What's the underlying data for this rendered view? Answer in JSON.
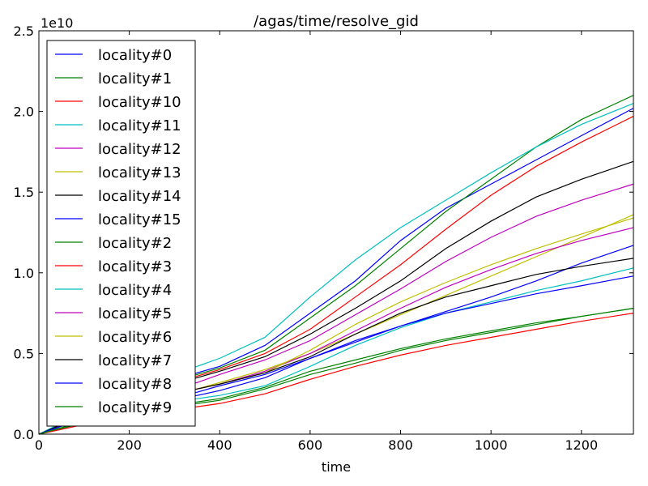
{
  "chart_data": {
    "type": "line",
    "title": "/agas/time/resolve_gid",
    "xlabel": "time",
    "ylabel": "",
    "y_offset_label": "1e10",
    "xlim": [
      0,
      1315
    ],
    "ylim": [
      0,
      2.5
    ],
    "y_multiplier": 10000000000,
    "xticks": [
      0,
      200,
      400,
      600,
      800,
      1000,
      1200
    ],
    "xtick_labels": [
      "0",
      "200",
      "400",
      "600",
      "800",
      "1000",
      "1200"
    ],
    "yticks": [
      0,
      0.5,
      1.0,
      1.5,
      2.0,
      2.5
    ],
    "ytick_labels": [
      "0.0",
      "0.5",
      "1.0",
      "1.5",
      "2.0",
      "2.5"
    ],
    "grid": false,
    "legend_position": "upper-left",
    "series": [
      {
        "name": "locality#0",
        "color": "#0000ff",
        "x": [
          0,
          100,
          200,
          300,
          350,
          400,
          500,
          600,
          700,
          800,
          900,
          1000,
          1100,
          1200,
          1315
        ],
        "y": [
          0,
          0.12,
          0.22,
          0.32,
          0.38,
          0.42,
          0.55,
          0.75,
          0.95,
          1.2,
          1.4,
          1.55,
          1.7,
          1.85,
          2.02
        ]
      },
      {
        "name": "locality#1",
        "color": "#008000",
        "x": [
          0,
          100,
          200,
          300,
          350,
          400,
          500,
          600,
          700,
          800,
          900,
          1000,
          1100,
          1200,
          1315
        ],
        "y": [
          0,
          0.12,
          0.22,
          0.32,
          0.37,
          0.41,
          0.52,
          0.72,
          0.92,
          1.15,
          1.38,
          1.58,
          1.78,
          1.95,
          2.1
        ]
      },
      {
        "name": "locality#10",
        "color": "#ff0000",
        "x": [
          0,
          100,
          200,
          300,
          350,
          400,
          500,
          600,
          700,
          800,
          900,
          1000,
          1100,
          1200,
          1315
        ],
        "y": [
          0,
          0.12,
          0.22,
          0.31,
          0.36,
          0.4,
          0.5,
          0.65,
          0.85,
          1.05,
          1.27,
          1.48,
          1.66,
          1.81,
          1.97
        ]
      },
      {
        "name": "locality#11",
        "color": "#00bfbf",
        "x": [
          0,
          100,
          200,
          300,
          350,
          400,
          500,
          600,
          700,
          800,
          900,
          1000,
          1100,
          1200,
          1315
        ],
        "y": [
          0,
          0.14,
          0.26,
          0.37,
          0.42,
          0.47,
          0.6,
          0.85,
          1.08,
          1.28,
          1.45,
          1.62,
          1.78,
          1.92,
          2.05
        ]
      },
      {
        "name": "locality#12",
        "color": "#bf00bf",
        "x": [
          0,
          100,
          200,
          300,
          350,
          400,
          500,
          600,
          700,
          800,
          900,
          1000,
          1100,
          1200,
          1315
        ],
        "y": [
          0,
          0.11,
          0.2,
          0.28,
          0.32,
          0.37,
          0.46,
          0.58,
          0.74,
          0.9,
          1.07,
          1.22,
          1.35,
          1.45,
          1.55
        ]
      },
      {
        "name": "locality#13",
        "color": "#bfbf00",
        "x": [
          0,
          100,
          200,
          300,
          350,
          400,
          500,
          600,
          700,
          800,
          900,
          1000,
          1100,
          1200,
          1315
        ],
        "y": [
          0,
          0.1,
          0.18,
          0.25,
          0.28,
          0.32,
          0.4,
          0.5,
          0.62,
          0.74,
          0.86,
          0.98,
          1.1,
          1.22,
          1.36
        ]
      },
      {
        "name": "locality#14",
        "color": "#000000",
        "x": [
          0,
          100,
          200,
          300,
          350,
          400,
          500,
          600,
          700,
          800,
          900,
          1000,
          1100,
          1200,
          1315
        ],
        "y": [
          0,
          0.12,
          0.22,
          0.31,
          0.35,
          0.39,
          0.48,
          0.62,
          0.78,
          0.95,
          1.15,
          1.32,
          1.47,
          1.58,
          1.69
        ]
      },
      {
        "name": "locality#15",
        "color": "#0000ff",
        "x": [
          0,
          100,
          200,
          300,
          350,
          400,
          500,
          600,
          700,
          800,
          900,
          1000,
          1100,
          1200,
          1315
        ],
        "y": [
          0,
          0.1,
          0.17,
          0.23,
          0.26,
          0.3,
          0.37,
          0.47,
          0.57,
          0.67,
          0.76,
          0.85,
          0.95,
          1.06,
          1.17
        ]
      },
      {
        "name": "locality#2",
        "color": "#008000",
        "x": [
          0,
          100,
          200,
          300,
          350,
          400,
          500,
          600,
          700,
          800,
          900,
          1000,
          1100,
          1200,
          1315
        ],
        "y": [
          0,
          0.07,
          0.13,
          0.17,
          0.19,
          0.21,
          0.28,
          0.37,
          0.44,
          0.52,
          0.58,
          0.63,
          0.68,
          0.73,
          0.78
        ]
      },
      {
        "name": "locality#3",
        "color": "#ff0000",
        "x": [
          0,
          100,
          200,
          300,
          350,
          400,
          500,
          600,
          700,
          800,
          900,
          1000,
          1100,
          1200,
          1315
        ],
        "y": [
          0,
          0.06,
          0.11,
          0.15,
          0.17,
          0.19,
          0.25,
          0.34,
          0.42,
          0.49,
          0.55,
          0.6,
          0.65,
          0.7,
          0.75
        ]
      },
      {
        "name": "locality#4",
        "color": "#00bfbf",
        "x": [
          0,
          100,
          200,
          300,
          350,
          400,
          500,
          600,
          700,
          800,
          900,
          1000,
          1100,
          1200,
          1315
        ],
        "y": [
          0,
          0.08,
          0.15,
          0.2,
          0.22,
          0.24,
          0.3,
          0.42,
          0.55,
          0.66,
          0.75,
          0.82,
          0.89,
          0.95,
          1.03
        ]
      },
      {
        "name": "locality#5",
        "color": "#bf00bf",
        "x": [
          0,
          100,
          200,
          300,
          350,
          400,
          500,
          600,
          700,
          800,
          900,
          1000,
          1100,
          1200,
          1315
        ],
        "y": [
          0,
          0.1,
          0.18,
          0.25,
          0.28,
          0.31,
          0.39,
          0.5,
          0.64,
          0.78,
          0.91,
          1.02,
          1.12,
          1.2,
          1.28
        ]
      },
      {
        "name": "locality#6",
        "color": "#bfbf00",
        "x": [
          0,
          100,
          200,
          300,
          350,
          400,
          500,
          600,
          700,
          800,
          900,
          1000,
          1100,
          1200,
          1315
        ],
        "y": [
          0,
          0.1,
          0.18,
          0.25,
          0.28,
          0.31,
          0.38,
          0.52,
          0.68,
          0.82,
          0.94,
          1.05,
          1.15,
          1.24,
          1.34
        ]
      },
      {
        "name": "locality#7",
        "color": "#000000",
        "x": [
          0,
          100,
          200,
          300,
          350,
          400,
          500,
          600,
          700,
          800,
          900,
          1000,
          1100,
          1200,
          1315
        ],
        "y": [
          0,
          0.1,
          0.18,
          0.25,
          0.28,
          0.31,
          0.38,
          0.48,
          0.62,
          0.75,
          0.85,
          0.92,
          0.99,
          1.04,
          1.09
        ]
      },
      {
        "name": "locality#8",
        "color": "#0000ff",
        "x": [
          0,
          100,
          200,
          300,
          350,
          400,
          500,
          600,
          700,
          800,
          900,
          1000,
          1100,
          1200,
          1315
        ],
        "y": [
          0,
          0.1,
          0.17,
          0.22,
          0.24,
          0.27,
          0.35,
          0.47,
          0.58,
          0.67,
          0.75,
          0.81,
          0.87,
          0.92,
          0.98
        ]
      },
      {
        "name": "locality#9",
        "color": "#008000",
        "x": [
          0,
          100,
          200,
          300,
          350,
          400,
          500,
          600,
          700,
          800,
          900,
          1000,
          1100,
          1200,
          1315
        ],
        "y": [
          0,
          0.08,
          0.14,
          0.18,
          0.2,
          0.22,
          0.29,
          0.39,
          0.46,
          0.53,
          0.59,
          0.64,
          0.69,
          0.73,
          0.78
        ]
      }
    ]
  }
}
